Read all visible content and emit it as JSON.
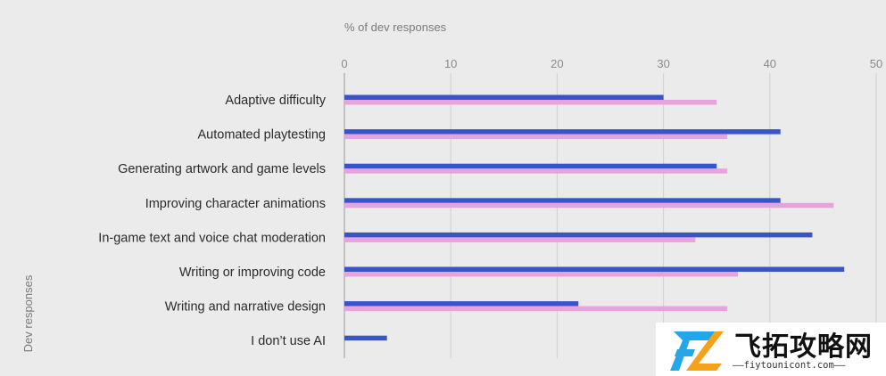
{
  "chart_data": {
    "type": "bar",
    "orientation": "horizontal",
    "title": "",
    "xlabel": "% of dev responses",
    "ylabel": "Dev responses",
    "xlim": [
      0,
      50
    ],
    "xticks": [
      0,
      10,
      20,
      30,
      40,
      50
    ],
    "grid": true,
    "legend": "none",
    "categories": [
      "Adaptive difficulty",
      "Automated playtesting",
      "Generating artwork and game levels",
      "Improving character animations",
      "In-game text and voice chat moderation",
      "Writing or improving code",
      "Writing and narrative design",
      "I don’t use AI"
    ],
    "series": [
      {
        "color": "#3a54c8",
        "values": [
          30,
          41,
          35,
          41,
          44,
          47,
          22,
          4
        ]
      },
      {
        "color": "#e7a3dc",
        "values": [
          35,
          36,
          36,
          46,
          33,
          37,
          36,
          0
        ]
      }
    ]
  },
  "watermark": {
    "brand": "飞拓攻略网",
    "url": "——fiytounicont.com——",
    "logo_icon": "fz-logo-icon"
  }
}
